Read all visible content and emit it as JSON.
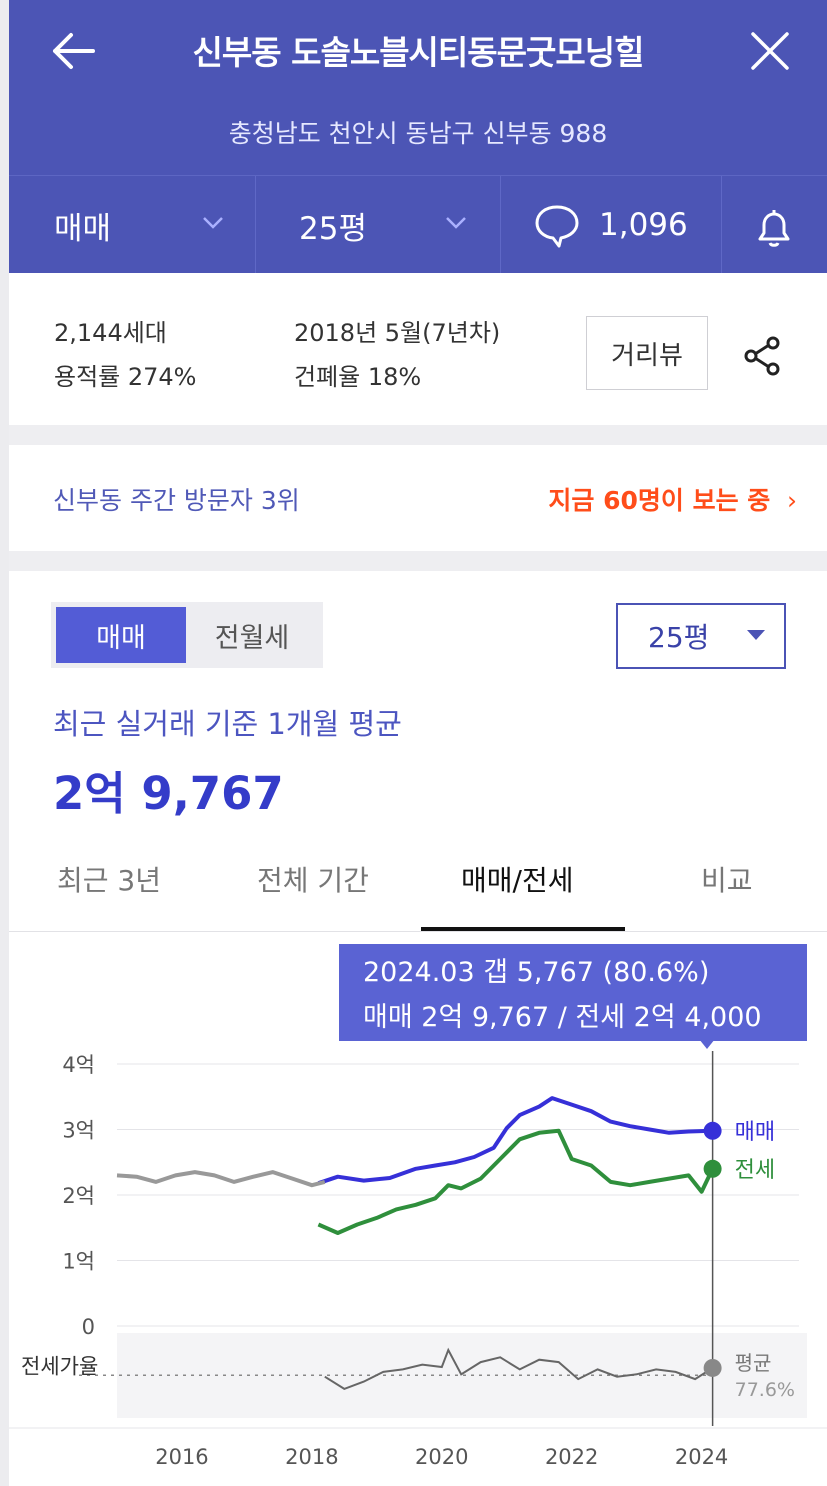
{
  "header": {
    "title": "신부동 도솔노블시티동문굿모닝힐",
    "address": "충청남도 천안시 동남구 신부동 988",
    "deal_type": "매매",
    "size": "25평",
    "comment_count": "1,096"
  },
  "info": {
    "households": "2,144세대",
    "built": "2018년 5월(7년차)",
    "far": "용적률 274%",
    "bcr": "건폐율 18%",
    "road_view": "거리뷰"
  },
  "visitor": {
    "rank_text": "신부동 주간 방문자 3위",
    "now_text": "지금 60명이 보는 중"
  },
  "price_section": {
    "toggle": [
      "매매",
      "전월세"
    ],
    "size_select": "25평",
    "recent_label": "최근 실거래 기준 1개월 평균",
    "average_price": "2억 9,767",
    "tabs": [
      "최근 3년",
      "전체 기간",
      "매매/전세",
      "비교"
    ],
    "active_tab": "매매/전세"
  },
  "tooltip": {
    "line1": "2024.03  갭 5,767 (80.6%)",
    "line2": "매매 2억 9,767 / 전세 2억 4,000"
  },
  "colors": {
    "header_bg": "#4c55b5",
    "sale": "#3630d8",
    "jeonse": "#2f8f3c",
    "pre_sale": "#999999",
    "accent_orange": "#ff4d1a"
  },
  "chart_data": {
    "type": "line",
    "title": "",
    "xlabel": "",
    "ylabel": "",
    "y_unit": "억",
    "ylim": [
      0,
      4
    ],
    "y_ticks": [
      "4억",
      "3억",
      "2억",
      "1억",
      "0"
    ],
    "x_ticks": [
      "2016",
      "2018",
      "2020",
      "2022",
      "2024"
    ],
    "x_range": [
      2015.0,
      2025.5
    ],
    "grid": true,
    "legend": "end-of-line labels (right)",
    "series": [
      {
        "name": "매매",
        "color": "#3630d8",
        "points": [
          [
            2018.1,
            2.18
          ],
          [
            2018.4,
            2.28
          ],
          [
            2018.8,
            2.22
          ],
          [
            2019.2,
            2.26
          ],
          [
            2019.6,
            2.4
          ],
          [
            2019.9,
            2.45
          ],
          [
            2020.2,
            2.5
          ],
          [
            2020.5,
            2.58
          ],
          [
            2020.8,
            2.72
          ],
          [
            2021.0,
            3.02
          ],
          [
            2021.2,
            3.22
          ],
          [
            2021.5,
            3.35
          ],
          [
            2021.7,
            3.48
          ],
          [
            2022.0,
            3.38
          ],
          [
            2022.3,
            3.28
          ],
          [
            2022.6,
            3.12
          ],
          [
            2022.9,
            3.05
          ],
          [
            2023.2,
            3.0
          ],
          [
            2023.5,
            2.95
          ],
          [
            2023.8,
            2.97
          ],
          [
            2024.17,
            2.98
          ]
        ]
      },
      {
        "name": "전세",
        "color": "#2f8f3c",
        "points": [
          [
            2018.1,
            1.55
          ],
          [
            2018.4,
            1.42
          ],
          [
            2018.7,
            1.55
          ],
          [
            2019.0,
            1.65
          ],
          [
            2019.3,
            1.78
          ],
          [
            2019.6,
            1.85
          ],
          [
            2019.9,
            1.95
          ],
          [
            2020.1,
            2.15
          ],
          [
            2020.3,
            2.1
          ],
          [
            2020.6,
            2.25
          ],
          [
            2020.9,
            2.55
          ],
          [
            2021.2,
            2.85
          ],
          [
            2021.5,
            2.95
          ],
          [
            2021.8,
            2.98
          ],
          [
            2022.0,
            2.55
          ],
          [
            2022.3,
            2.45
          ],
          [
            2022.6,
            2.2
          ],
          [
            2022.9,
            2.15
          ],
          [
            2023.2,
            2.2
          ],
          [
            2023.5,
            2.25
          ],
          [
            2023.8,
            2.3
          ],
          [
            2024.0,
            2.05
          ],
          [
            2024.17,
            2.4
          ]
        ]
      },
      {
        "name": "",
        "color": "#999999",
        "points": [
          [
            2015.0,
            2.3
          ],
          [
            2015.3,
            2.28
          ],
          [
            2015.6,
            2.2
          ],
          [
            2015.9,
            2.3
          ],
          [
            2016.2,
            2.35
          ],
          [
            2016.5,
            2.3
          ],
          [
            2016.8,
            2.2
          ],
          [
            2017.1,
            2.28
          ],
          [
            2017.4,
            2.35
          ],
          [
            2017.7,
            2.25
          ],
          [
            2018.0,
            2.15
          ],
          [
            2018.2,
            2.2
          ]
        ]
      }
    ],
    "jeonse_ratio": {
      "label": "전세가율",
      "average_label": "평균",
      "average_value": "77.6%",
      "values": [
        [
          2018.2,
          77
        ],
        [
          2018.5,
          72
        ],
        [
          2018.8,
          75
        ],
        [
          2019.1,
          79
        ],
        [
          2019.4,
          80
        ],
        [
          2019.7,
          82
        ],
        [
          2020.0,
          81
        ],
        [
          2020.1,
          88
        ],
        [
          2020.3,
          78
        ],
        [
          2020.6,
          83
        ],
        [
          2020.9,
          85
        ],
        [
          2021.2,
          80
        ],
        [
          2021.5,
          84
        ],
        [
          2021.8,
          83
        ],
        [
          2022.1,
          76
        ],
        [
          2022.4,
          80
        ],
        [
          2022.7,
          77
        ],
        [
          2023.0,
          78
        ],
        [
          2023.3,
          80
        ],
        [
          2023.6,
          79
        ],
        [
          2023.9,
          76
        ],
        [
          2024.17,
          80.6
        ]
      ]
    }
  }
}
